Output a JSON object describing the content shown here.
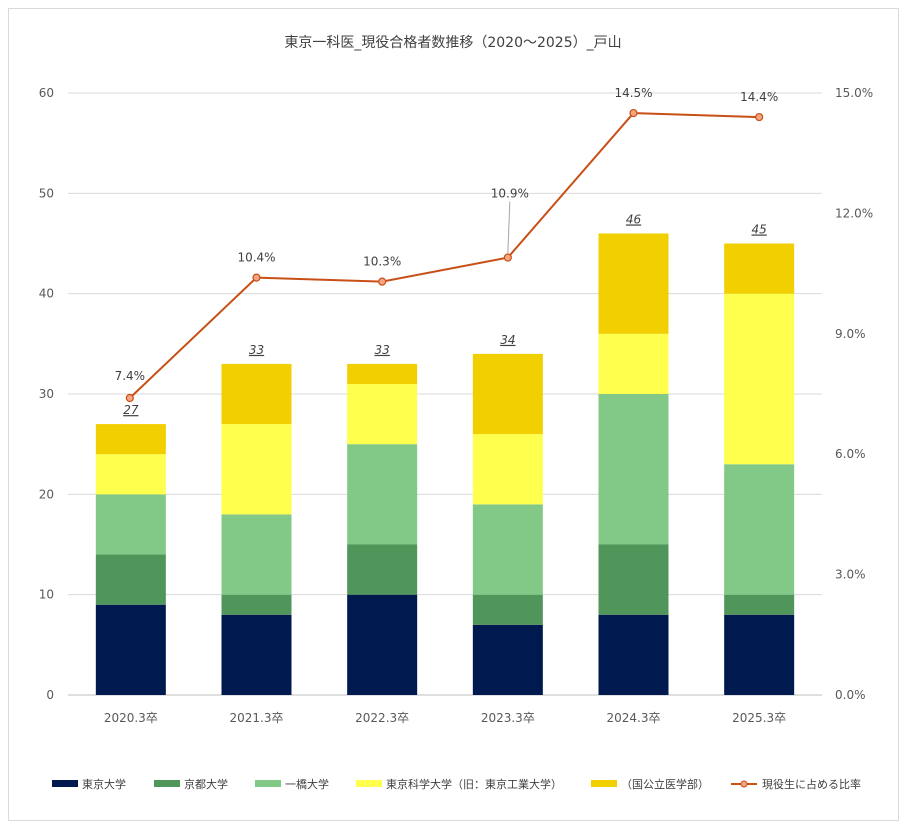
{
  "chart_data": {
    "type": "bar",
    "stacked": true,
    "title": "東京一科医_現役合格者数推移（2020～2025）_戸山",
    "categories": [
      "2020.3卒",
      "2021.3卒",
      "2022.3卒",
      "2023.3卒",
      "2024.3卒",
      "2025.3卒"
    ],
    "series": [
      {
        "name": "東京大学",
        "values": [
          9,
          8,
          10,
          7,
          8,
          8
        ],
        "color": "#001a50"
      },
      {
        "name": "京都大学",
        "values": [
          5,
          2,
          5,
          3,
          7,
          2
        ],
        "color": "#50955a"
      },
      {
        "name": "一橋大学",
        "values": [
          6,
          8,
          10,
          9,
          15,
          13
        ],
        "color": "#82c887"
      },
      {
        "name": "東京科学大学（旧：東京工業大学）",
        "values": [
          4,
          9,
          6,
          7,
          6,
          17
        ],
        "color": "#ffff4d"
      },
      {
        "name": "（国公立医学部）",
        "values": [
          3,
          6,
          2,
          8,
          10,
          5
        ],
        "color": "#f2cf00"
      }
    ],
    "totals": [
      "27",
      "33",
      "33",
      "34",
      "46",
      "45"
    ],
    "line_series": {
      "name": "現役生に占める比率",
      "values": [
        7.4,
        10.4,
        10.3,
        10.9,
        14.5,
        14.4
      ],
      "labels": [
        "7.4%",
        "10.4%",
        "10.3%",
        "10.9%",
        "14.5%",
        "14.4%"
      ],
      "color": "#c84f16"
    },
    "y_left": {
      "min": 0,
      "max": 60,
      "step": 10,
      "ticks": [
        "0",
        "10",
        "20",
        "30",
        "40",
        "50",
        "60"
      ]
    },
    "y_right": {
      "min": 0,
      "max": 15,
      "step": 3,
      "ticks": [
        "0.0%",
        "3.0%",
        "6.0%",
        "9.0%",
        "12.0%",
        "15.0%"
      ]
    },
    "grid": true,
    "legend_position": "bottom"
  }
}
